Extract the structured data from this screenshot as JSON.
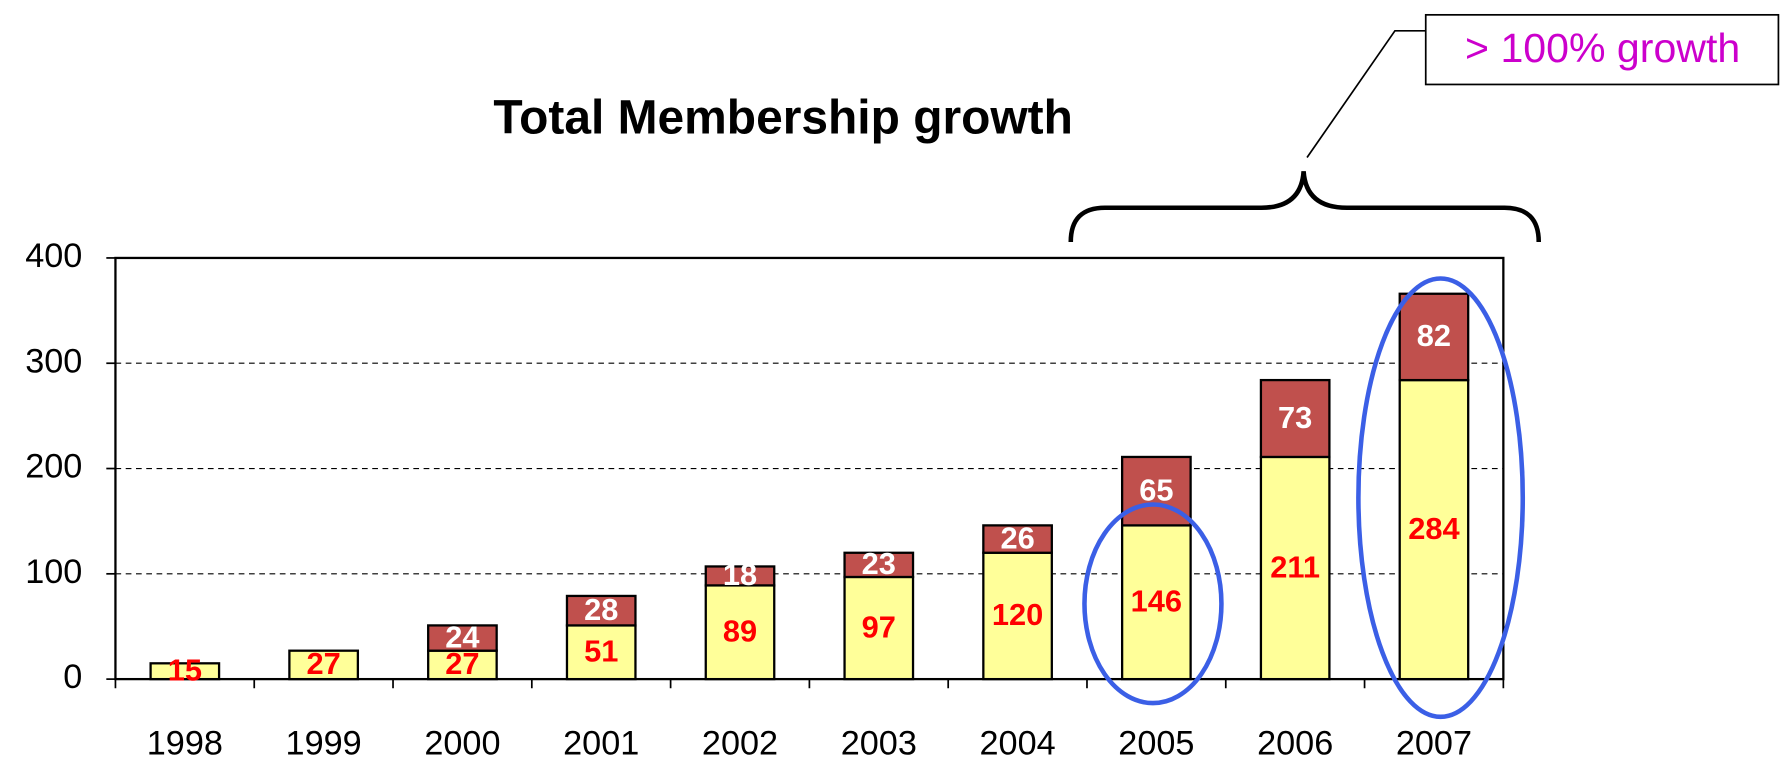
{
  "chart_data": {
    "type": "stacked_bar",
    "title": "Total Membership growth",
    "annotation": "> 100% growth",
    "categories": [
      "1998",
      "1999",
      "2000",
      "2001",
      "2002",
      "2003",
      "2004",
      "2005",
      "2006",
      "2007"
    ],
    "series": [
      {
        "color": "#ffff99",
        "label_color": "#ff0000",
        "values": [
          15,
          27,
          27,
          51,
          89,
          97,
          120,
          146,
          211,
          284
        ]
      },
      {
        "color": "#c0504d",
        "label_color": "#ffffff",
        "values": [
          null,
          null,
          24,
          28,
          18,
          23,
          26,
          65,
          73,
          82
        ]
      }
    ],
    "ylim": [
      0,
      400
    ],
    "yticks": [
      0,
      100,
      200,
      300,
      400
    ],
    "grid": true
  }
}
